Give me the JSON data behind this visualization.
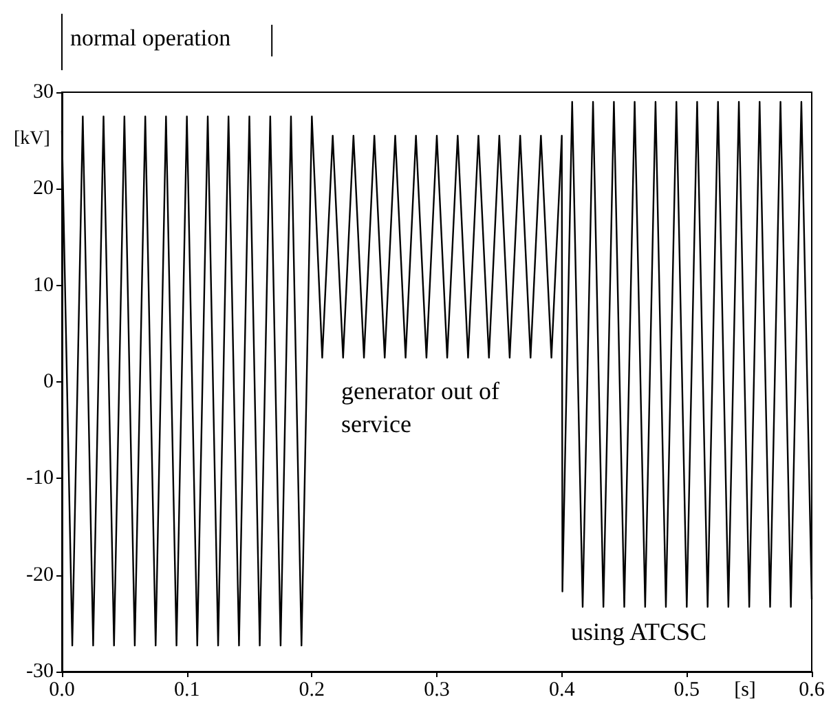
{
  "chart_data": {
    "type": "line",
    "xlabel": "[s]",
    "ylabel": "[kV]",
    "xlim": [
      0,
      0.6
    ],
    "xticks": [
      {
        "value": 0,
        "label": "0.0"
      },
      0.1,
      0.2,
      0.3,
      0.4,
      0.5,
      0.6
    ],
    "ylim": [
      -30,
      30
    ],
    "yticks": [
      -30,
      -20,
      -10,
      0,
      10,
      20,
      30
    ],
    "grid": false,
    "marker": "none",
    "line_style": "solid",
    "annotations": [
      "normal operation",
      "generator out of service",
      "using ATCSC"
    ],
    "series": [
      {
        "color": "#000000",
        "x": [
          0,
          0.0083,
          0.0167,
          0.025,
          0.0333,
          0.0417,
          0.05,
          0.0583,
          0.0667,
          0.075,
          0.0833,
          0.0917,
          0.1,
          0.1083,
          0.1167,
          0.125,
          0.1333,
          0.1417,
          0.15,
          0.1583,
          0.1667,
          0.175,
          0.1833,
          0.1917,
          0.2,
          0.2083,
          0.2167,
          0.225,
          0.2333,
          0.2417,
          0.25,
          0.2583,
          0.2667,
          0.275,
          0.2833,
          0.2917,
          0.3,
          0.3083,
          0.3167,
          0.325,
          0.3333,
          0.3417,
          0.35,
          0.3583,
          0.3667,
          0.375,
          0.3833,
          0.3917,
          0.4,
          0.4005,
          0.4083,
          0.4167,
          0.425,
          0.4333,
          0.4417,
          0.45,
          0.4583,
          0.4667,
          0.475,
          0.4833,
          0.4917,
          0.5,
          0.5083,
          0.5167,
          0.525,
          0.5333,
          0.5417,
          0.55,
          0.5583,
          0.5667,
          0.575,
          0.5833,
          0.5917,
          0.6
        ],
        "values": [
          26,
          -27.3,
          27.5,
          -27.3,
          27.5,
          -27.3,
          27.5,
          -27.3,
          27.5,
          -27.3,
          27.5,
          -27.3,
          27.5,
          -27.3,
          27.5,
          -27.3,
          27.5,
          -27.3,
          27.5,
          -27.3,
          27.5,
          -27.3,
          27.5,
          -27.3,
          27.5,
          2.5,
          25.5,
          2.5,
          25.5,
          2.5,
          25.5,
          2.5,
          25.5,
          2.5,
          25.5,
          2.5,
          25.5,
          2.5,
          25.5,
          2.5,
          25.5,
          2.5,
          25.5,
          2.5,
          25.5,
          2.5,
          25.5,
          2.5,
          25.5,
          -21.7,
          29,
          -23.3,
          29,
          -23.3,
          29,
          -23.3,
          29,
          -23.3,
          29,
          -23.3,
          29,
          -23.3,
          29,
          -23.3,
          29,
          -23.3,
          29,
          -23.3,
          29,
          -23.3,
          29,
          -23.3,
          29,
          -22.5
        ]
      }
    ]
  }
}
